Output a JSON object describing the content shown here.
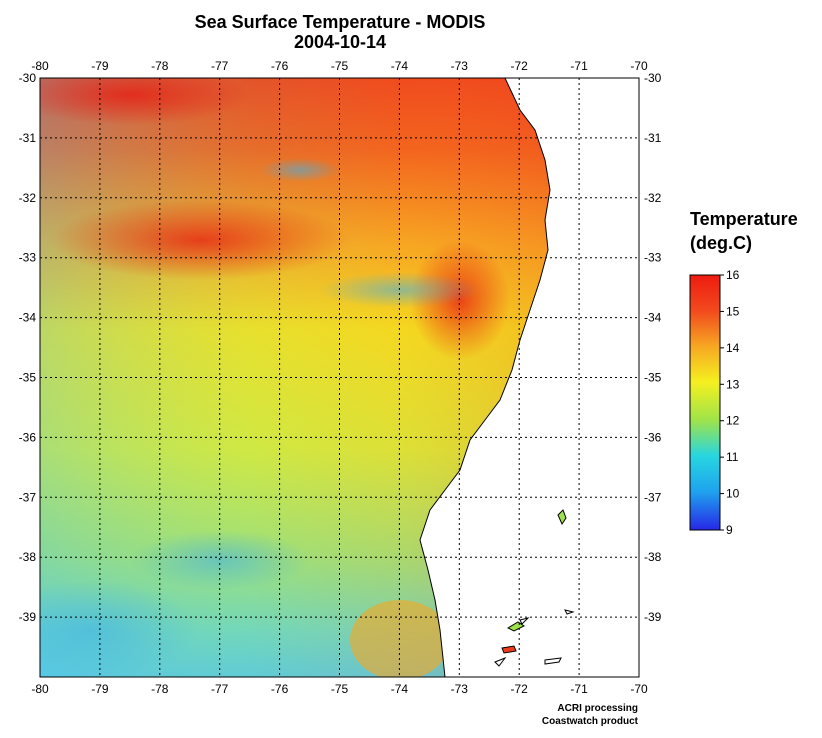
{
  "header": {
    "title": "Sea Surface Temperature - MODIS",
    "date": "2004-10-14"
  },
  "map": {
    "lon_ticks": [
      "-80",
      "-79",
      "-78",
      "-77",
      "-76",
      "-75",
      "-74",
      "-73",
      "-72",
      "-71",
      "-70"
    ],
    "lat_ticks": [
      "-30",
      "-31",
      "-32",
      "-33",
      "-34",
      "-35",
      "-36",
      "-37",
      "-38",
      "-39"
    ],
    "lon_range": [
      -80,
      -70
    ],
    "lat_range": [
      -40,
      -30
    ],
    "grid": "dotted",
    "land_color": "#ffffff"
  },
  "legend": {
    "title_line1": "Temperature",
    "title_line2": "(deg.C)",
    "ticks": [
      "16",
      "15",
      "14",
      "13",
      "12",
      "11",
      "10",
      "9"
    ],
    "min": 9,
    "max": 16,
    "colors": [
      "#2727e6",
      "#1fa2ee",
      "#27d6e0",
      "#9ee34a",
      "#f5f020",
      "#f7a722",
      "#ef3b1d",
      "#ee1b10"
    ]
  },
  "credits": {
    "line1": "ACRI processing",
    "line2": "Coastwatch product"
  }
}
